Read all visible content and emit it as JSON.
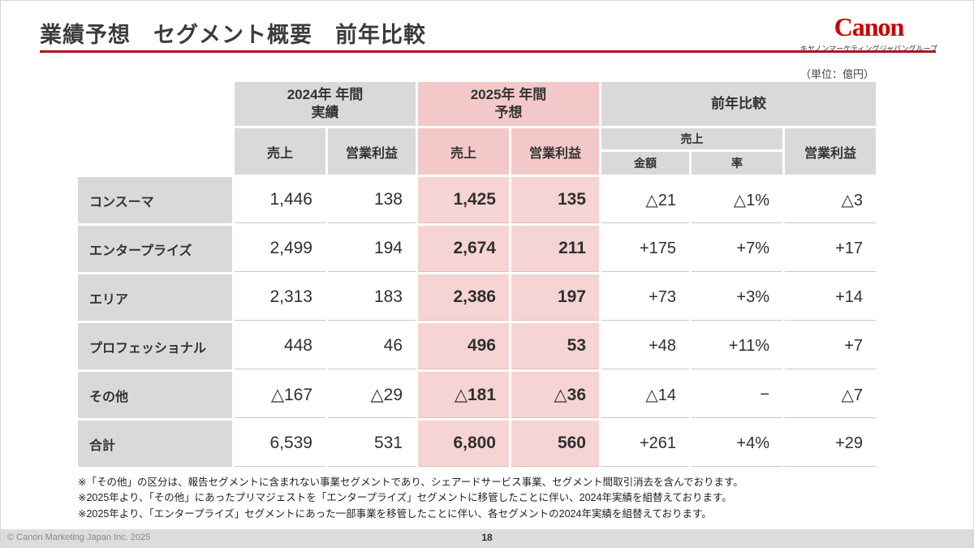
{
  "header": {
    "title": "業績予想　セグメント概要　前年比較",
    "canon_logo": "Canon",
    "canon_subtitle": "キヤノンマーケティングジャパングループ",
    "unit_note": "（単位：億円）"
  },
  "colors": {
    "accent_red_rule": "#b5121b",
    "canon_red": "#cc0000",
    "header_gray": "#d9d9d9",
    "highlight_pink_header": "#f3c8c8",
    "highlight_pink_cell": "#f6d4d4"
  },
  "table": {
    "groups": {
      "y2024_line1": "2024年 年間",
      "y2024_line2": "実績",
      "y2025_line1": "2025年 年間",
      "y2025_line2": "予想",
      "yoy": "前年比較"
    },
    "subheaders": {
      "sales_2024": "売上",
      "profit_2024": "営業利益",
      "sales_2025": "売上",
      "profit_2025": "営業利益",
      "yoy_sales": "売上",
      "yoy_amount": "金額",
      "yoy_rate": "率",
      "yoy_profit": "営業利益"
    },
    "rows": [
      {
        "label": "コンスーマ",
        "s24": "1,446",
        "p24": "138",
        "s25": "1,425",
        "p25": "135",
        "amt": "△21",
        "rate": "△1%",
        "pyoy": "△3"
      },
      {
        "label": "エンタープライズ",
        "s24": "2,499",
        "p24": "194",
        "s25": "2,674",
        "p25": "211",
        "amt": "+175",
        "rate": "+7%",
        "pyoy": "+17"
      },
      {
        "label": "エリア",
        "s24": "2,313",
        "p24": "183",
        "s25": "2,386",
        "p25": "197",
        "amt": "+73",
        "rate": "+3%",
        "pyoy": "+14"
      },
      {
        "label": "プロフェッショナル",
        "s24": "448",
        "p24": "46",
        "s25": "496",
        "p25": "53",
        "amt": "+48",
        "rate": "+11%",
        "pyoy": "+7"
      },
      {
        "label": "その他",
        "s24": "△167",
        "p24": "△29",
        "s25": "△181",
        "p25": "△36",
        "amt": "△14",
        "rate": "−",
        "pyoy": "△7"
      },
      {
        "label": "合計",
        "s24": "6,539",
        "p24": "531",
        "s25": "6,800",
        "p25": "560",
        "amt": "+261",
        "rate": "+4%",
        "pyoy": "+29"
      }
    ]
  },
  "footnotes": [
    "※「その他」の区分は、報告セグメントに含まれない事業セグメントであり、シェアードサービス事業、セグメント間取引消去を含んでおります。",
    "※2025年より、「その他」にあったプリマジェストを「エンタープライズ」セグメントに移管したことに伴い、2024年実績を組替えております。",
    "※2025年より、「エンタープライズ」セグメントにあった一部事業を移管したことに伴い、各セグメントの2024年実績を組替えております。"
  ],
  "footer": {
    "copyright": "© Canon Marketing Japan Inc. 2025",
    "page": "18"
  }
}
